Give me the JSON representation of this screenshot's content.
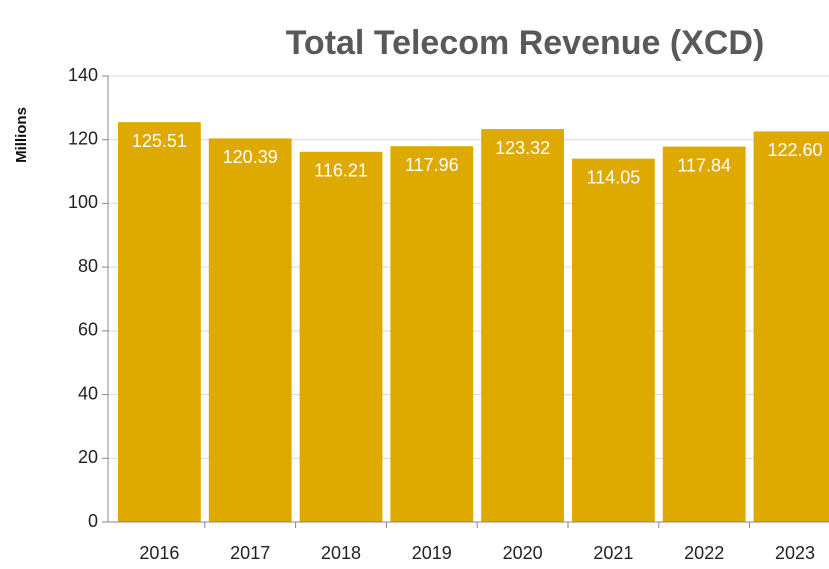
{
  "chart_data": {
    "type": "bar",
    "title": "Total Telecom Revenue (XCD)",
    "y_label": "Millions",
    "categories": [
      "2016",
      "2017",
      "2018",
      "2019",
      "2020",
      "2021",
      "2022",
      "2023"
    ],
    "values": [
      125.51,
      120.39,
      116.21,
      117.96,
      123.32,
      114.05,
      117.84,
      122.6
    ],
    "value_labels": [
      "125.51",
      "120.39",
      "116.21",
      "117.96",
      "123.32",
      "114.05",
      "117.84",
      "122.60"
    ],
    "color": "#dea900",
    "ylim": [
      0,
      140
    ],
    "yticks": [
      0,
      20,
      40,
      60,
      80,
      100,
      120,
      140
    ],
    "grid": true
  }
}
